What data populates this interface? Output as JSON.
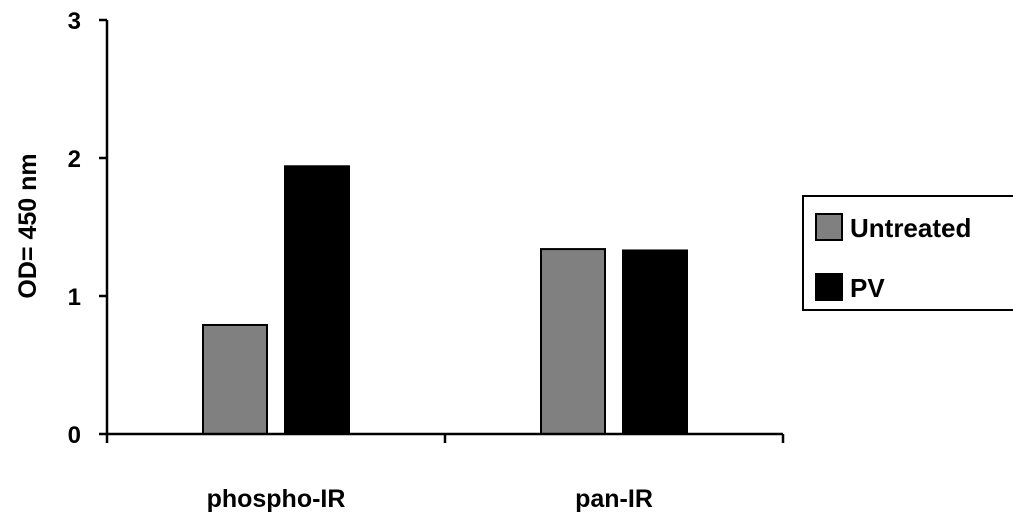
{
  "chart_data": {
    "type": "bar",
    "title": "",
    "ylabel": "OD= 450 nm",
    "xlabel": "",
    "categories": [
      "phospho-IR",
      "pan-IR"
    ],
    "series": [
      {
        "name": "Untreated",
        "values": [
          0.79,
          1.34
        ],
        "color": "#808080"
      },
      {
        "name": "PV",
        "values": [
          1.94,
          1.33
        ],
        "color": "#000000"
      }
    ],
    "ylim": [
      0,
      3
    ],
    "yticks": [
      "0",
      "1",
      "2",
      "3"
    ],
    "grid": false,
    "legend_position": "right"
  }
}
